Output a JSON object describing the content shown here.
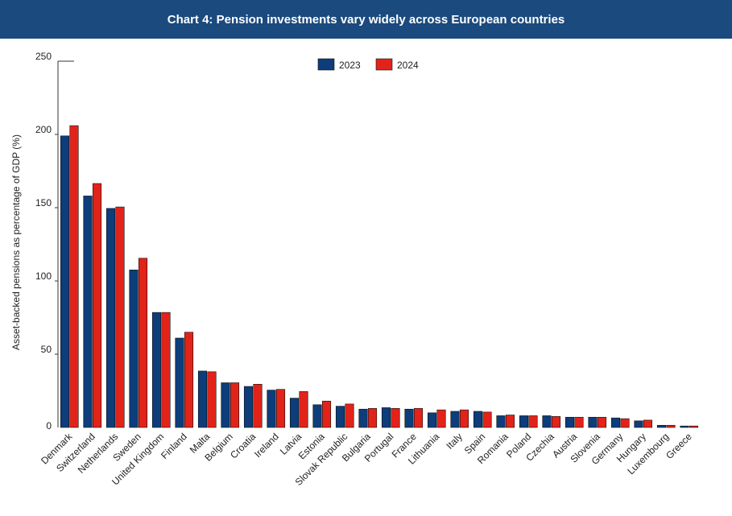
{
  "header": {
    "title": "Chart 4: Pension investments vary widely across European countries"
  },
  "colors": {
    "header_bg": "#1a4a7e",
    "s2023": "#0d3d7a",
    "s2024": "#e2231a"
  },
  "chart_data": {
    "type": "bar",
    "title": "Chart 4: Pension investments vary widely across European countries",
    "ylabel": "Asset-backed pensions as percentage of GDP (%)",
    "xlabel": "",
    "ylim": [
      0,
      250
    ],
    "yticks": [
      "0",
      "50",
      "100",
      "150",
      "200",
      "250"
    ],
    "legend_position": "top-center",
    "grid": false,
    "categories": [
      "Denmark",
      "Switzerland",
      "Netherlands",
      "Sweden",
      "United Kingdom",
      "Finland",
      "Malta",
      "Belgium",
      "Croatia",
      "Ireland",
      "Latvia",
      "Estonia",
      "Slovak Republic",
      "Bulgaria",
      "Portugal",
      "France",
      "Lithuania",
      "Italy",
      "Spain",
      "Romania",
      "Poland",
      "Czechia",
      "Austria",
      "Slovenia",
      "Germany",
      "Hungary",
      "Luxembourg",
      "Greece"
    ],
    "series": [
      {
        "name": "2023",
        "color": "#0d3d7a",
        "values": [
          199,
          158,
          149.5,
          107.5,
          78.5,
          61,
          38.5,
          30.5,
          28,
          25.5,
          20,
          15.5,
          14.5,
          12.5,
          13.5,
          12.5,
          10,
          11,
          11,
          8,
          8,
          8,
          7,
          7,
          6.5,
          4.5,
          1.5,
          1
        ]
      },
      {
        "name": "2024",
        "color": "#e2231a",
        "values": [
          206,
          166.5,
          150.5,
          115.5,
          78.5,
          65,
          38,
          30.5,
          29.5,
          26,
          24.5,
          18,
          16,
          13,
          13,
          13,
          12,
          12,
          10.5,
          8.5,
          8,
          7.5,
          7,
          7,
          6,
          5,
          1.5,
          1
        ]
      }
    ]
  }
}
